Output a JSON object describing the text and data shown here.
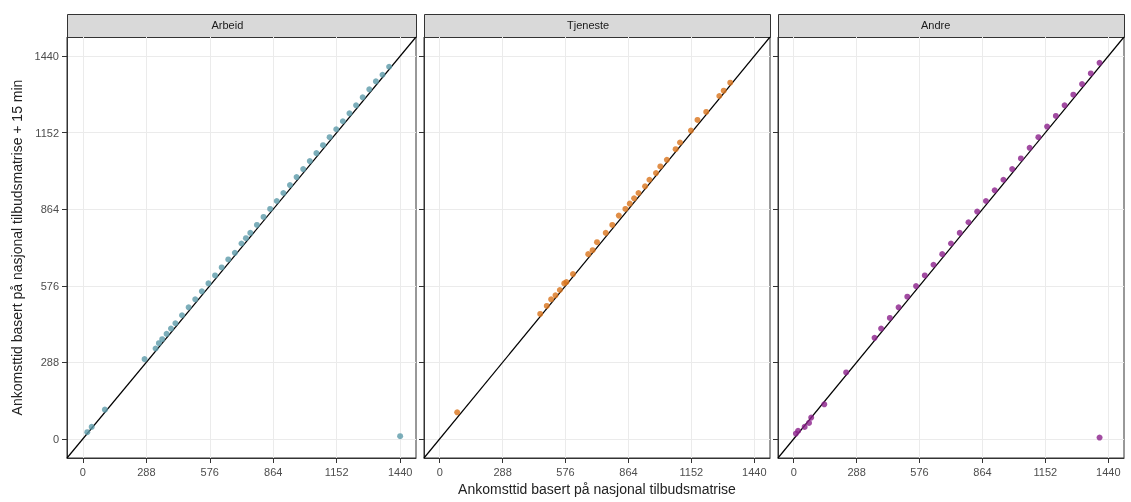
{
  "chart_data": [
    {
      "type": "scatter",
      "title": "Arbeid",
      "ylabel": "Ankomsttid basert på nasjonal tilbudsmatrise + 15 min",
      "xlim": [
        -72,
        1512
      ],
      "ylim": [
        -72,
        1512
      ],
      "xticks": [
        0,
        288,
        576,
        864,
        1152,
        1440
      ],
      "yticks": [
        0,
        288,
        576,
        864,
        1152,
        1440
      ],
      "grid": true,
      "marker": "circle",
      "series": [
        {
          "color": "#5b9aa9",
          "x": [
            20,
            40,
            100,
            280,
            330,
            345,
            360,
            380,
            400,
            420,
            450,
            480,
            510,
            540,
            570,
            600,
            630,
            660,
            690,
            720,
            740,
            760,
            790,
            820,
            850,
            880,
            910,
            940,
            970,
            1000,
            1030,
            1060,
            1090,
            1120,
            1150,
            1180,
            1210,
            1240,
            1270,
            1300,
            1330,
            1360,
            1390,
            1440
          ],
          "values": [
            25,
            45,
            110,
            300,
            340,
            360,
            375,
            395,
            415,
            435,
            465,
            495,
            525,
            555,
            585,
            615,
            645,
            675,
            700,
            735,
            755,
            775,
            805,
            835,
            865,
            895,
            925,
            955,
            985,
            1015,
            1045,
            1075,
            1105,
            1135,
            1165,
            1195,
            1225,
            1255,
            1285,
            1315,
            1345,
            1370,
            1400,
            10
          ]
        },
        {
          "type": "line",
          "color": "#000000",
          "marker": "none",
          "x": [
            -72,
            1512
          ],
          "values": [
            -72,
            1512
          ]
        }
      ]
    },
    {
      "type": "scatter",
      "title": "Tjeneste",
      "xlabel": "Ankomsttid basert på nasjonal tilbudsmatrise",
      "xlim": [
        -72,
        1512
      ],
      "ylim": [
        -72,
        1512
      ],
      "xticks": [
        0,
        288,
        576,
        864,
        1152,
        1440
      ],
      "yticks": [
        0,
        288,
        576,
        864,
        1152,
        1440
      ],
      "grid": true,
      "marker": "circle",
      "tick_labels": "x",
      "series": [
        {
          "color": "#d9731a",
          "x": [
            80,
            460,
            490,
            510,
            530,
            550,
            570,
            580,
            610,
            680,
            700,
            720,
            760,
            790,
            820,
            850,
            870,
            890,
            910,
            940,
            960,
            990,
            1010,
            1040,
            1080,
            1100,
            1150,
            1180,
            1220,
            1280,
            1300,
            1330
          ],
          "values": [
            100,
            470,
            500,
            525,
            540,
            560,
            585,
            590,
            620,
            695,
            710,
            740,
            775,
            805,
            840,
            865,
            885,
            905,
            925,
            950,
            975,
            1000,
            1025,
            1050,
            1090,
            1115,
            1160,
            1200,
            1230,
            1290,
            1310,
            1340
          ]
        },
        {
          "type": "line",
          "color": "#000000",
          "marker": "none",
          "x": [
            -72,
            1512
          ],
          "values": [
            -72,
            1512
          ]
        }
      ]
    },
    {
      "type": "scatter",
      "title": "Andre",
      "xlim": [
        -72,
        1512
      ],
      "ylim": [
        -72,
        1512
      ],
      "xticks": [
        0,
        288,
        576,
        864,
        1152,
        1440
      ],
      "yticks": [
        0,
        288,
        576,
        864,
        1152,
        1440
      ],
      "grid": true,
      "marker": "circle",
      "tick_labels": "x",
      "series": [
        {
          "color": "#8b1f8b",
          "x": [
            10,
            20,
            50,
            70,
            80,
            140,
            240,
            370,
            400,
            440,
            480,
            520,
            560,
            600,
            640,
            680,
            720,
            760,
            800,
            840,
            880,
            920,
            960,
            1000,
            1040,
            1080,
            1120,
            1160,
            1200,
            1240,
            1280,
            1320,
            1360,
            1400,
            1400
          ],
          "values": [
            20,
            30,
            45,
            60,
            80,
            130,
            250,
            380,
            415,
            455,
            495,
            535,
            575,
            615,
            655,
            695,
            735,
            775,
            815,
            855,
            895,
            935,
            975,
            1015,
            1055,
            1095,
            1135,
            1175,
            1215,
            1255,
            1295,
            1335,
            1375,
            1415,
            5
          ]
        },
        {
          "type": "line",
          "color": "#000000",
          "marker": "none",
          "x": [
            -72,
            1512
          ],
          "values": [
            -72,
            1512
          ]
        }
      ]
    }
  ]
}
